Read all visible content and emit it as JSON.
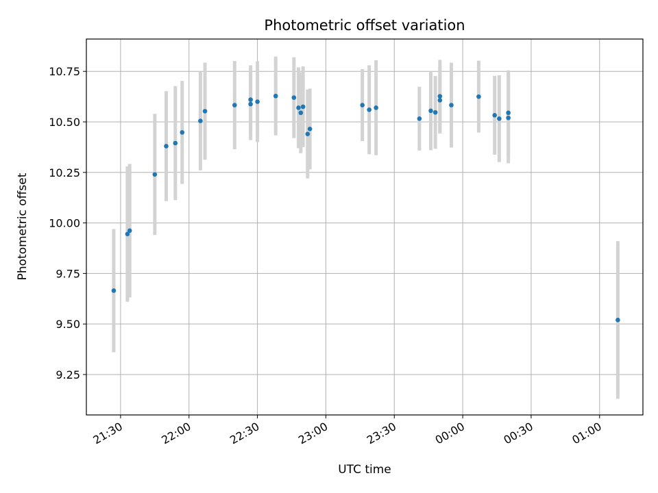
{
  "chart_data": {
    "type": "scatter",
    "title": "Photometric offset variation",
    "xlabel": "UTC time",
    "ylabel": "Photometric offset",
    "xticks": [
      "21:30",
      "22:00",
      "22:30",
      "23:00",
      "23:30",
      "00:00",
      "00:30",
      "01:00"
    ],
    "yticks": [
      "9.25",
      "9.50",
      "9.75",
      "10.00",
      "10.25",
      "10.50",
      "10.75"
    ],
    "xlim": [
      "21:15",
      "01:19"
    ],
    "ylim": [
      9.05,
      10.91
    ],
    "grid": true,
    "point_color": "#1f77b4",
    "errorbar_color": "#d3d3d3",
    "points": [
      {
        "t": "21:27",
        "y": 9.665,
        "err": 0.305
      },
      {
        "t": "21:33",
        "y": 9.945,
        "err": 0.335
      },
      {
        "t": "21:34",
        "y": 9.962,
        "err": 0.33
      },
      {
        "t": "21:45",
        "y": 10.24,
        "err": 0.3
      },
      {
        "t": "21:50",
        "y": 10.38,
        "err": 0.272
      },
      {
        "t": "21:54",
        "y": 10.395,
        "err": 0.282
      },
      {
        "t": "21:57",
        "y": 10.448,
        "err": 0.255
      },
      {
        "t": "22:05",
        "y": 10.505,
        "err": 0.245
      },
      {
        "t": "22:07",
        "y": 10.553,
        "err": 0.24
      },
      {
        "t": "22:20",
        "y": 10.583,
        "err": 0.218
      },
      {
        "t": "22:27",
        "y": 10.61,
        "err": 0.17
      },
      {
        "t": "22:27",
        "y": 10.588,
        "err": 0.178
      },
      {
        "t": "22:30",
        "y": 10.6,
        "err": 0.2
      },
      {
        "t": "22:38",
        "y": 10.628,
        "err": 0.195
      },
      {
        "t": "22:46",
        "y": 10.62,
        "err": 0.2
      },
      {
        "t": "22:48",
        "y": 10.57,
        "err": 0.2
      },
      {
        "t": "22:49",
        "y": 10.545,
        "err": 0.2
      },
      {
        "t": "22:50",
        "y": 10.575,
        "err": 0.2
      },
      {
        "t": "22:52",
        "y": 10.44,
        "err": 0.22
      },
      {
        "t": "22:53",
        "y": 10.465,
        "err": 0.2
      },
      {
        "t": "23:16",
        "y": 10.583,
        "err": 0.178
      },
      {
        "t": "23:19",
        "y": 10.56,
        "err": 0.22
      },
      {
        "t": "23:22",
        "y": 10.57,
        "err": 0.235
      },
      {
        "t": "23:41",
        "y": 10.516,
        "err": 0.158
      },
      {
        "t": "23:46",
        "y": 10.555,
        "err": 0.195
      },
      {
        "t": "23:48",
        "y": 10.547,
        "err": 0.18
      },
      {
        "t": "23:50",
        "y": 10.607,
        "err": 0.165
      },
      {
        "t": "23:50",
        "y": 10.627,
        "err": 0.18
      },
      {
        "t": "23:55",
        "y": 10.583,
        "err": 0.21
      },
      {
        "t": "00:07",
        "y": 10.625,
        "err": 0.178
      },
      {
        "t": "00:14",
        "y": 10.533,
        "err": 0.195
      },
      {
        "t": "00:16",
        "y": 10.516,
        "err": 0.215
      },
      {
        "t": "00:20",
        "y": 10.545,
        "err": 0.21
      },
      {
        "t": "00:20",
        "y": 10.52,
        "err": 0.225
      },
      {
        "t": "01:08",
        "y": 9.52,
        "err": 0.39
      }
    ]
  }
}
